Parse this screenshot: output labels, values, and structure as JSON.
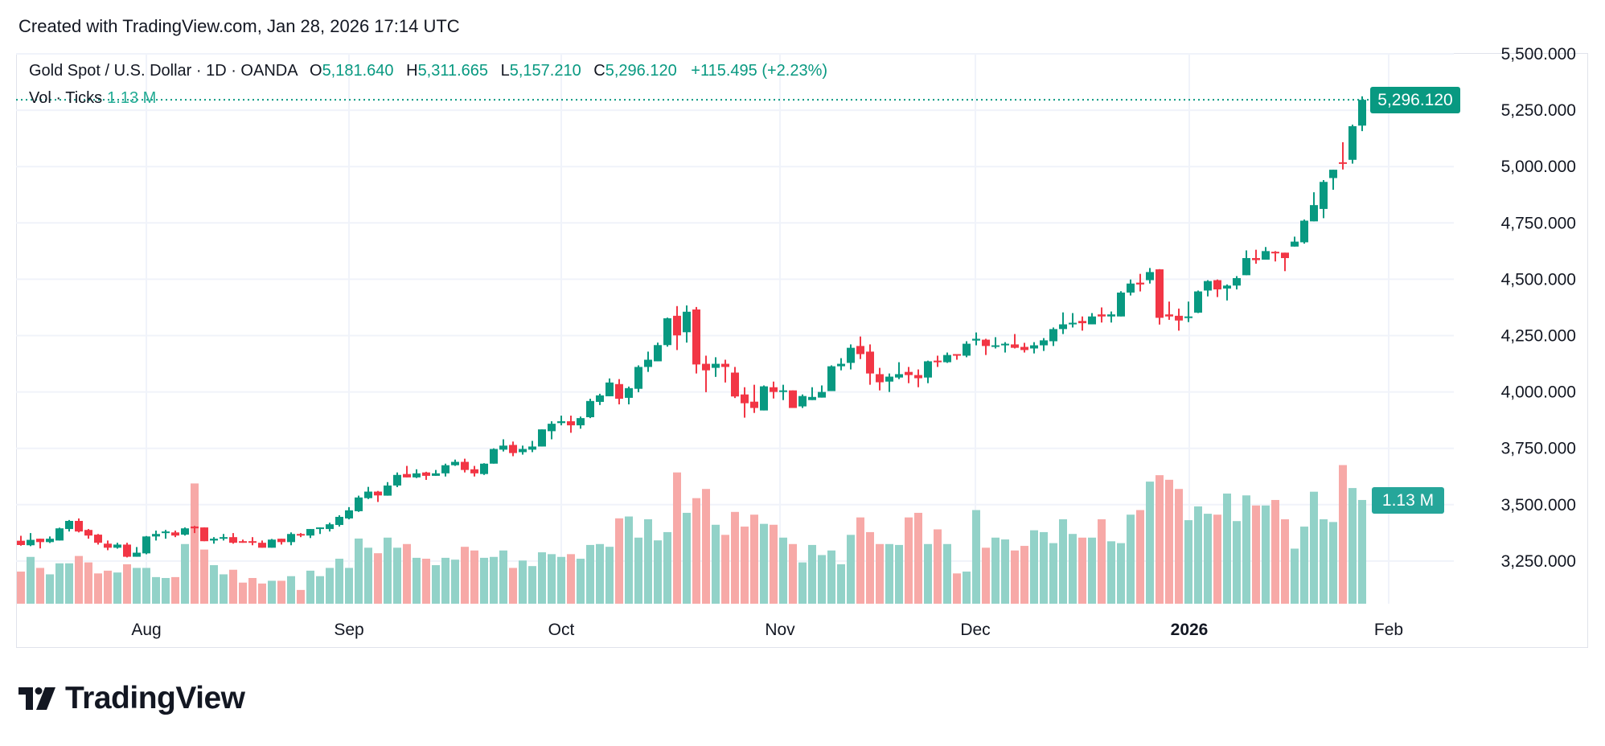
{
  "header": {
    "created": "Created with TradingView.com, Jan 28, 2026 17:14 UTC"
  },
  "legend": {
    "symbol": "Gold Spot / U.S. Dollar · 1D · OANDA",
    "open_label": "O",
    "open": "5,181.640",
    "high_label": "H",
    "high": "5,311.665",
    "low_label": "L",
    "low": "5,157.210",
    "close_label": "C",
    "close": "5,296.120",
    "change": "+115.495 (+2.23%)",
    "volume_label": "Vol · Ticks",
    "volume": "1.13 M"
  },
  "tags": {
    "last_price": "5,296.120",
    "last_volume": "1.13 M"
  },
  "logo": {
    "text": "TradingView"
  },
  "colors": {
    "up": "#089981",
    "down": "#f23645",
    "up_volume": "#92d2c8",
    "down_volume": "#f7a9a7",
    "grid": "#f0f3fa"
  },
  "chart_data": {
    "type": "candlestick",
    "title": "Gold Spot / U.S. Dollar · 1D · OANDA",
    "ylim": [
      3100,
      5550
    ],
    "yticks": [
      5500,
      5250,
      5000,
      4750,
      4500,
      4250,
      4000,
      3750,
      3500,
      3250
    ],
    "ytick_labels": [
      "5,500.000",
      "5,250.000",
      "5,000.000",
      "4,750.000",
      "4,500.000",
      "4,250.000",
      "4,000.000",
      "3,750.000",
      "3,500.000",
      "3,250.000"
    ],
    "xtick_labels": [
      {
        "label": "Aug",
        "bold": false
      },
      {
        "label": "Sep",
        "bold": false
      },
      {
        "label": "Oct",
        "bold": false
      },
      {
        "label": "Nov",
        "bold": false
      },
      {
        "label": "Dec",
        "bold": false
      },
      {
        "label": "2026",
        "bold": true
      },
      {
        "label": "Feb",
        "bold": false
      }
    ],
    "grid": true,
    "last_price": 5296.12,
    "volume_unit": "M",
    "columns": [
      "open",
      "high",
      "low",
      "close",
      "volume"
    ],
    "ohlcv": [
      [
        3340,
        3362,
        3318,
        3321,
        0.35
      ],
      [
        3320,
        3374,
        3316,
        3344,
        0.51
      ],
      [
        3349,
        3349,
        3306,
        3334,
        0.39
      ],
      [
        3334,
        3359,
        3330,
        3349,
        0.32
      ],
      [
        3341,
        3398,
        3341,
        3395,
        0.44
      ],
      [
        3392,
        3432,
        3381,
        3428,
        0.44
      ],
      [
        3428,
        3439,
        3377,
        3381,
        0.52
      ],
      [
        3388,
        3392,
        3349,
        3363,
        0.45
      ],
      [
        3367,
        3370,
        3323,
        3331,
        0.33
      ],
      [
        3327,
        3341,
        3298,
        3309,
        0.36
      ],
      [
        3309,
        3331,
        3305,
        3323,
        0.34
      ],
      [
        3323,
        3331,
        3266,
        3269,
        0.43
      ],
      [
        3269,
        3312,
        3269,
        3287,
        0.39
      ],
      [
        3284,
        3361,
        3280,
        3359,
        0.39
      ],
      [
        3359,
        3385,
        3341,
        3370,
        0.29
      ],
      [
        3374,
        3388,
        3349,
        3381,
        0.28
      ],
      [
        3377,
        3385,
        3356,
        3363,
        0.29
      ],
      [
        3367,
        3399,
        3363,
        3395,
        0.65
      ],
      [
        3403,
        3406,
        3374,
        3395,
        1.31
      ],
      [
        3399,
        3399,
        3338,
        3338,
        0.59
      ],
      [
        3341,
        3356,
        3327,
        3349,
        0.42
      ],
      [
        3349,
        3370,
        3341,
        3356,
        0.32
      ],
      [
        3356,
        3374,
        3327,
        3331,
        0.37
      ],
      [
        3338,
        3345,
        3331,
        3331,
        0.23
      ],
      [
        3338,
        3356,
        3320,
        3331,
        0.28
      ],
      [
        3331,
        3341,
        3309,
        3309,
        0.22
      ],
      [
        3309,
        3348,
        3309,
        3345,
        0.25
      ],
      [
        3349,
        3349,
        3323,
        3334,
        0.25
      ],
      [
        3334,
        3377,
        3320,
        3370,
        0.3
      ],
      [
        3370,
        3374,
        3356,
        3363,
        0.15
      ],
      [
        3363,
        3392,
        3352,
        3392,
        0.36
      ],
      [
        3392,
        3399,
        3370,
        3399,
        0.3
      ],
      [
        3392,
        3420,
        3381,
        3413,
        0.39
      ],
      [
        3410,
        3453,
        3403,
        3446,
        0.49
      ],
      [
        3439,
        3489,
        3435,
        3475,
        0.39
      ],
      [
        3471,
        3540,
        3468,
        3532,
        0.71
      ],
      [
        3529,
        3579,
        3525,
        3558,
        0.61
      ],
      [
        3558,
        3561,
        3512,
        3541,
        0.55
      ],
      [
        3540,
        3600,
        3540,
        3585,
        0.72
      ],
      [
        3585,
        3643,
        3578,
        3632,
        0.61
      ],
      [
        3636,
        3672,
        3621,
        3621,
        0.65
      ],
      [
        3621,
        3657,
        3618,
        3639,
        0.5
      ],
      [
        3643,
        3646,
        3610,
        3628,
        0.49
      ],
      [
        3628,
        3654,
        3628,
        3639,
        0.42
      ],
      [
        3639,
        3682,
        3625,
        3675,
        0.5
      ],
      [
        3675,
        3700,
        3672,
        3690,
        0.48
      ],
      [
        3690,
        3704,
        3643,
        3654,
        0.62
      ],
      [
        3657,
        3672,
        3625,
        3639,
        0.58
      ],
      [
        3636,
        3684,
        3632,
        3682,
        0.5
      ],
      [
        3682,
        3750,
        3682,
        3747,
        0.51
      ],
      [
        3744,
        3790,
        3736,
        3762,
        0.58
      ],
      [
        3765,
        3780,
        3715,
        3729,
        0.39
      ],
      [
        3733,
        3762,
        3722,
        3747,
        0.47
      ],
      [
        3744,
        3783,
        3733,
        3758,
        0.41
      ],
      [
        3758,
        3834,
        3758,
        3834,
        0.56
      ],
      [
        3826,
        3870,
        3790,
        3859,
        0.54
      ],
      [
        3862,
        3895,
        3852,
        3870,
        0.51
      ],
      [
        3870,
        3895,
        3819,
        3852,
        0.54
      ],
      [
        3852,
        3891,
        3837,
        3884,
        0.49
      ],
      [
        3888,
        3970,
        3884,
        3960,
        0.64
      ],
      [
        3956,
        3992,
        3942,
        3985,
        0.65
      ],
      [
        3981,
        4060,
        3981,
        4042,
        0.62
      ],
      [
        4035,
        4057,
        3945,
        3970,
        0.93
      ],
      [
        3974,
        4024,
        3945,
        4017,
        0.95
      ],
      [
        4014,
        4118,
        3999,
        4111,
        0.72
      ],
      [
        4111,
        4179,
        4089,
        4143,
        0.92
      ],
      [
        4136,
        4219,
        4136,
        4208,
        0.69
      ],
      [
        4208,
        4330,
        4201,
        4327,
        0.78
      ],
      [
        4338,
        4381,
        4186,
        4251,
        1.43
      ],
      [
        4265,
        4384,
        4219,
        4356,
        0.99
      ],
      [
        4366,
        4377,
        4082,
        4122,
        1.15
      ],
      [
        4125,
        4161,
        3999,
        4096,
        1.25
      ],
      [
        4107,
        4154,
        4067,
        4125,
        0.86
      ],
      [
        4125,
        4143,
        4042,
        4111,
        0.75
      ],
      [
        4086,
        4111,
        3973,
        3980,
        1.0
      ],
      [
        3989,
        4021,
        3886,
        3950,
        0.84
      ],
      [
        3957,
        4032,
        3907,
        3929,
        0.97
      ],
      [
        3918,
        4029,
        3918,
        4025,
        0.87
      ],
      [
        4021,
        4046,
        3971,
        4000,
        0.86
      ],
      [
        4000,
        4032,
        3964,
        4007,
        0.72
      ],
      [
        4007,
        4007,
        3929,
        3929,
        0.65
      ],
      [
        3936,
        3989,
        3929,
        3982,
        0.45
      ],
      [
        3964,
        4021,
        3964,
        3978,
        0.64
      ],
      [
        3975,
        4029,
        3975,
        4000,
        0.53
      ],
      [
        4004,
        4118,
        4004,
        4114,
        0.58
      ],
      [
        4114,
        4150,
        4096,
        4125,
        0.43
      ],
      [
        4129,
        4211,
        4100,
        4196,
        0.75
      ],
      [
        4204,
        4246,
        4146,
        4168,
        0.94
      ],
      [
        4179,
        4211,
        4032,
        4082,
        0.78
      ],
      [
        4079,
        4107,
        4007,
        4043,
        0.65
      ],
      [
        4046,
        4082,
        4000,
        4068,
        0.65
      ],
      [
        4064,
        4132,
        4057,
        4079,
        0.64
      ],
      [
        4089,
        4111,
        4039,
        4075,
        0.94
      ],
      [
        4075,
        4100,
        4021,
        4061,
        0.99
      ],
      [
        4064,
        4139,
        4039,
        4136,
        0.65
      ],
      [
        4139,
        4161,
        4111,
        4132,
        0.81
      ],
      [
        4132,
        4175,
        4129,
        4164,
        0.65
      ],
      [
        4168,
        4168,
        4143,
        4161,
        0.33
      ],
      [
        4161,
        4225,
        4154,
        4214,
        0.35
      ],
      [
        4228,
        4264,
        4207,
        4236,
        1.02
      ],
      [
        4232,
        4236,
        4164,
        4204,
        0.61
      ],
      [
        4200,
        4243,
        4193,
        4207,
        0.72
      ],
      [
        4207,
        4221,
        4175,
        4214,
        0.7
      ],
      [
        4211,
        4257,
        4193,
        4196,
        0.58
      ],
      [
        4200,
        4218,
        4175,
        4186,
        0.63
      ],
      [
        4193,
        4221,
        4171,
        4207,
        0.8
      ],
      [
        4207,
        4239,
        4182,
        4229,
        0.78
      ],
      [
        4225,
        4286,
        4204,
        4279,
        0.66
      ],
      [
        4279,
        4353,
        4257,
        4300,
        0.92
      ],
      [
        4300,
        4350,
        4286,
        4307,
        0.76
      ],
      [
        4315,
        4335,
        4272,
        4305,
        0.72
      ],
      [
        4300,
        4350,
        4300,
        4335,
        0.72
      ],
      [
        4344,
        4375,
        4308,
        4335,
        0.92
      ],
      [
        4335,
        4357,
        4308,
        4344,
        0.68
      ],
      [
        4335,
        4447,
        4335,
        4441,
        0.66
      ],
      [
        4441,
        4499,
        4428,
        4481,
        0.97
      ],
      [
        4485,
        4524,
        4446,
        4477,
        1.02
      ],
      [
        4496,
        4550,
        4481,
        4532,
        1.33
      ],
      [
        4544,
        4545,
        4299,
        4329,
        1.4
      ],
      [
        4344,
        4401,
        4320,
        4335,
        1.35
      ],
      [
        4338,
        4370,
        4272,
        4317,
        1.25
      ],
      [
        4329,
        4401,
        4310,
        4335,
        0.91
      ],
      [
        4352,
        4450,
        4350,
        4446,
        1.06
      ],
      [
        4450,
        4496,
        4424,
        4492,
        0.98
      ],
      [
        4496,
        4499,
        4421,
        4455,
        0.97
      ],
      [
        4459,
        4477,
        4406,
        4472,
        1.2
      ],
      [
        4472,
        4514,
        4455,
        4505,
        0.9
      ],
      [
        4518,
        4628,
        4518,
        4594,
        1.18
      ],
      [
        4594,
        4631,
        4569,
        4585,
        1.07
      ],
      [
        4587,
        4643,
        4587,
        4625,
        1.07
      ],
      [
        4622,
        4625,
        4579,
        4615,
        1.13
      ],
      [
        4618,
        4618,
        4536,
        4594,
        0.92
      ],
      [
        4645,
        4689,
        4645,
        4667,
        0.6
      ],
      [
        4664,
        4765,
        4658,
        4760,
        0.84
      ],
      [
        4757,
        4886,
        4757,
        4829,
        1.22
      ],
      [
        4812,
        4940,
        4771,
        4932,
        0.92
      ],
      [
        4949,
        4986,
        4897,
        4986,
        0.89
      ],
      [
        5019,
        5108,
        4987,
        5013,
        1.51
      ],
      [
        5030,
        5186,
        5013,
        5179,
        1.26
      ],
      [
        5181.64,
        5311.665,
        5157.21,
        5296.12,
        1.13
      ]
    ]
  }
}
